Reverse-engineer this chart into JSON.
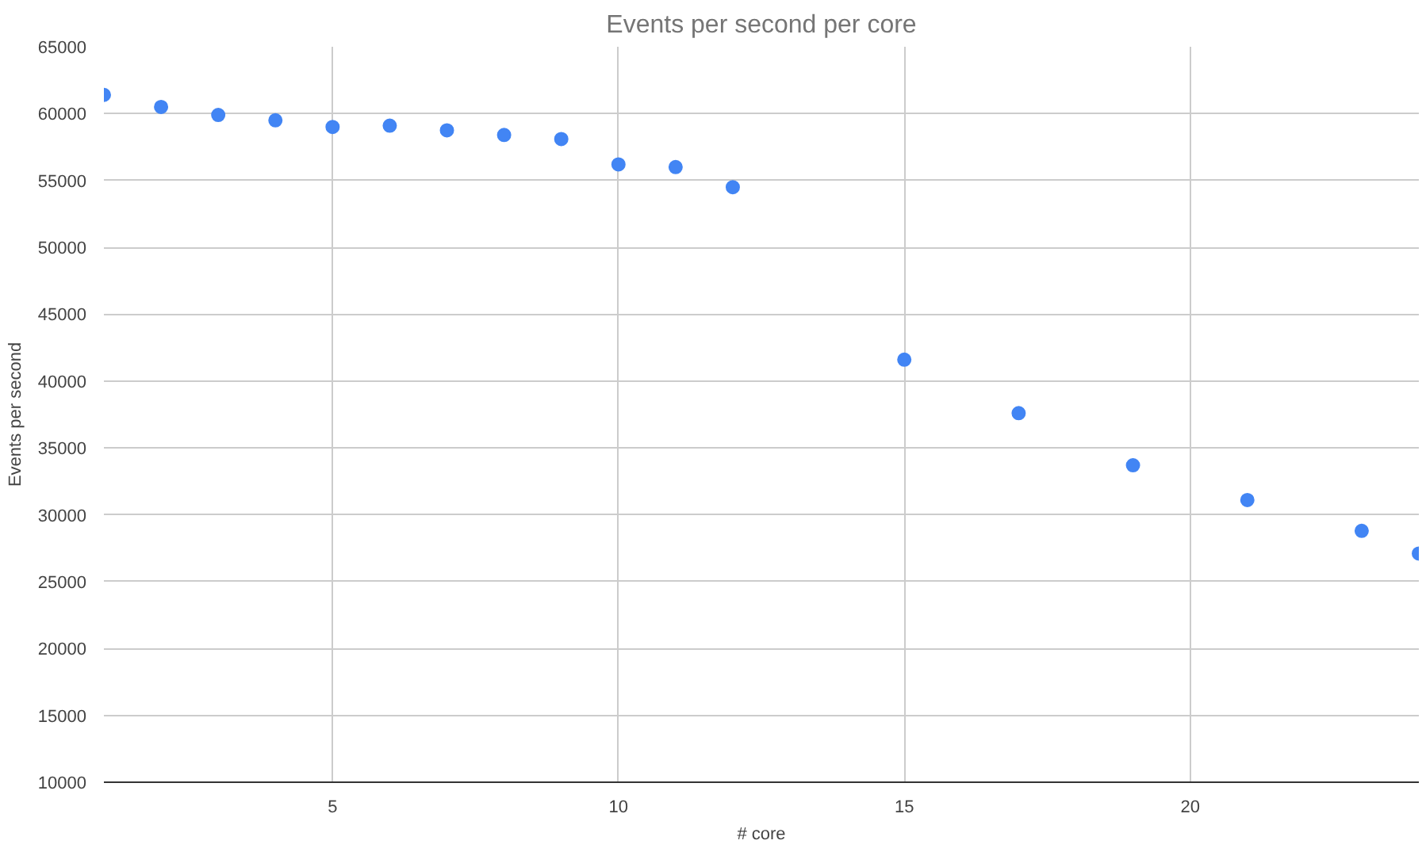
{
  "chart_data": {
    "type": "scatter",
    "title": "Events per second per core",
    "xlabel": "# core",
    "ylabel": "Events per second",
    "x": [
      1,
      2,
      3,
      4,
      5,
      6,
      7,
      8,
      9,
      10,
      11,
      12,
      15,
      17,
      19,
      21,
      23,
      24
    ],
    "series": [
      {
        "color": "#4285f4",
        "values": [
          61400,
          60500,
          59900,
          59500,
          59000,
          59100,
          58750,
          58400,
          58100,
          56200,
          56000,
          54500,
          41600,
          37600,
          33700,
          31100,
          28800,
          27100
        ]
      }
    ],
    "xlim": [
      1,
      24
    ],
    "xticks": [
      5,
      10,
      15,
      20
    ],
    "ylim": [
      10000,
      65000
    ],
    "yticks": [
      10000,
      15000,
      20000,
      25000,
      30000,
      35000,
      40000,
      45000,
      50000,
      55000,
      60000,
      65000
    ],
    "grid": true,
    "marker": "circle"
  }
}
